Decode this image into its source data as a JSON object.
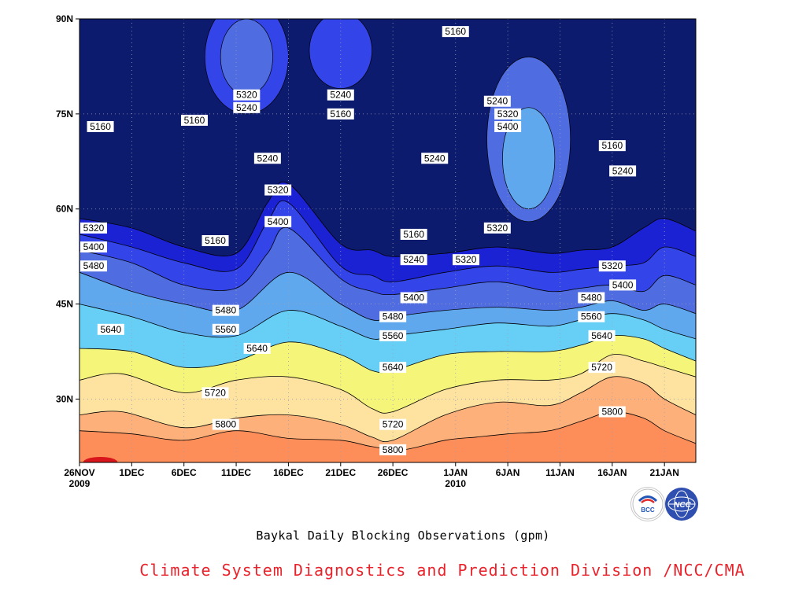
{
  "chart_data": {
    "type": "heatmap",
    "subtype": "filled-contour",
    "title": "Baykal Daily Blocking Observations (gpm)",
    "credit": "Climate System Diagnostics and Prediction Division /NCC/CMA",
    "x_axis": {
      "labels": [
        {
          "day": 0,
          "text": "26NOV",
          "sub": "2009"
        },
        {
          "day": 5,
          "text": "1DEC"
        },
        {
          "day": 10,
          "text": "6DEC"
        },
        {
          "day": 15,
          "text": "11DEC"
        },
        {
          "day": 20,
          "text": "16DEC"
        },
        {
          "day": 25,
          "text": "21DEC"
        },
        {
          "day": 30,
          "text": "26DEC"
        },
        {
          "day": 36,
          "text": "1JAN",
          "sub": "2010"
        },
        {
          "day": 41,
          "text": "6JAN"
        },
        {
          "day": 46,
          "text": "11JAN"
        },
        {
          "day": 51,
          "text": "16JAN"
        },
        {
          "day": 56,
          "text": "21JAN"
        }
      ],
      "range_days": [
        0,
        59
      ]
    },
    "y_axis": {
      "labels": [
        {
          "lat": 30,
          "text": "30N"
        },
        {
          "lat": 45,
          "text": "45N"
        },
        {
          "lat": 60,
          "text": "60N"
        },
        {
          "lat": 75,
          "text": "75N"
        },
        {
          "lat": 90,
          "text": "90N"
        }
      ],
      "range_lat": [
        20,
        90
      ]
    },
    "grid": "dotted",
    "levels": [
      5160,
      5240,
      5320,
      5400,
      5480,
      5560,
      5640,
      5720,
      5800
    ],
    "colors": [
      "#0d1b6e",
      "#1b22d4",
      "#3344e8",
      "#4f6ce0",
      "#5fa8ee",
      "#67cff6",
      "#f5f57a",
      "#fde2a0",
      "#feb07a",
      "#fd8e5a",
      "#f46e74",
      "#d8161b"
    ],
    "contour_lines": [
      {
        "level": 5800,
        "points": [
          [
            0,
            25.0
          ],
          [
            5,
            24.5
          ],
          [
            10,
            23.5
          ],
          [
            15,
            25.0
          ],
          [
            20,
            23.8
          ],
          [
            25,
            23.5
          ],
          [
            28,
            22.5
          ],
          [
            31,
            22.0
          ],
          [
            35,
            23.5
          ],
          [
            38,
            24.0
          ],
          [
            41,
            24.5
          ],
          [
            45,
            25.0
          ],
          [
            48,
            26.5
          ],
          [
            51,
            28.0
          ],
          [
            54,
            27.0
          ],
          [
            56,
            25.0
          ],
          [
            59,
            23.0
          ]
        ]
      },
      {
        "level": 5720,
        "points": [
          [
            0,
            27.5
          ],
          [
            4,
            28.0
          ],
          [
            10,
            25.5
          ],
          [
            15,
            27.0
          ],
          [
            20,
            27.5
          ],
          [
            25,
            26.0
          ],
          [
            28,
            24.0
          ],
          [
            30,
            23.5
          ],
          [
            35,
            27.5
          ],
          [
            40,
            29.5
          ],
          [
            45,
            29.0
          ],
          [
            48,
            31.0
          ],
          [
            51,
            33.5
          ],
          [
            54,
            32.5
          ],
          [
            56,
            30.0
          ],
          [
            59,
            27.5
          ]
        ]
      },
      {
        "level": 5640,
        "points": [
          [
            0,
            33.0
          ],
          [
            4,
            34.0
          ],
          [
            10,
            31.0
          ],
          [
            15,
            33.0
          ],
          [
            20,
            33.5
          ],
          [
            25,
            31.5
          ],
          [
            28,
            28.5
          ],
          [
            30,
            28.0
          ],
          [
            35,
            31.5
          ],
          [
            40,
            33.0
          ],
          [
            45,
            33.0
          ],
          [
            48,
            34.0
          ],
          [
            51,
            37.0
          ],
          [
            54,
            36.0
          ],
          [
            56,
            35.0
          ],
          [
            59,
            33.5
          ]
        ]
      },
      {
        "level": 5560,
        "points": [
          [
            0,
            38.0
          ],
          [
            5,
            37.5
          ],
          [
            10,
            35.0
          ],
          [
            15,
            36.0
          ],
          [
            20,
            39.0
          ],
          [
            25,
            37.0
          ],
          [
            28,
            34.5
          ],
          [
            30,
            34.5
          ],
          [
            35,
            37.0
          ],
          [
            40,
            37.5
          ],
          [
            45,
            37.5
          ],
          [
            48,
            38.5
          ],
          [
            51,
            40.0
          ],
          [
            54,
            39.5
          ],
          [
            56,
            38.0
          ],
          [
            59,
            36.0
          ]
        ]
      },
      {
        "level": 5480,
        "points": [
          [
            0,
            45.0
          ],
          [
            5,
            43.0
          ],
          [
            10,
            40.5
          ],
          [
            15,
            40.0
          ],
          [
            20,
            44.0
          ],
          [
            25,
            41.5
          ],
          [
            28,
            39.5
          ],
          [
            30,
            40.0
          ],
          [
            35,
            41.0
          ],
          [
            40,
            42.0
          ],
          [
            45,
            41.5
          ],
          [
            48,
            42.5
          ],
          [
            51,
            43.5
          ],
          [
            54,
            42.5
          ],
          [
            56,
            41.0
          ],
          [
            59,
            39.5
          ]
        ]
      },
      {
        "level": 5400,
        "points": [
          [
            0,
            50.0
          ],
          [
            5,
            47.0
          ],
          [
            10,
            45.0
          ],
          [
            15,
            44.0
          ],
          [
            20,
            50.0
          ],
          [
            25,
            45.0
          ],
          [
            28,
            42.5
          ],
          [
            30,
            43.0
          ],
          [
            35,
            44.0
          ],
          [
            40,
            44.5
          ],
          [
            45,
            44.0
          ],
          [
            48,
            44.5
          ],
          [
            51,
            45.5
          ],
          [
            54,
            44.0
          ],
          [
            56,
            45.0
          ],
          [
            59,
            43.5
          ]
        ]
      },
      {
        "level": 5320,
        "points": [
          [
            0,
            53.5
          ],
          [
            5,
            51.5
          ],
          [
            10,
            48.0
          ],
          [
            15,
            47.5
          ],
          [
            18,
            53.0
          ],
          [
            20,
            57.0
          ],
          [
            25,
            49.0
          ],
          [
            28,
            47.0
          ],
          [
            30,
            46.5
          ],
          [
            35,
            47.5
          ],
          [
            40,
            48.5
          ],
          [
            45,
            47.0
          ],
          [
            48,
            47.5
          ],
          [
            51,
            48.0
          ],
          [
            54,
            47.0
          ],
          [
            56,
            49.5
          ],
          [
            59,
            48.0
          ]
        ]
      },
      {
        "level": 5240,
        "points": [
          [
            0,
            56.0
          ],
          [
            5,
            54.0
          ],
          [
            10,
            51.5
          ],
          [
            15,
            50.5
          ],
          [
            18,
            58.0
          ],
          [
            20,
            61.0
          ],
          [
            25,
            51.0
          ],
          [
            28,
            49.5
          ],
          [
            30,
            48.5
          ],
          [
            35,
            50.0
          ],
          [
            40,
            51.0
          ],
          [
            45,
            50.0
          ],
          [
            48,
            50.5
          ],
          [
            51,
            51.0
          ],
          [
            54,
            51.5
          ],
          [
            56,
            54.0
          ],
          [
            59,
            52.5
          ]
        ]
      },
      {
        "level": 5160,
        "points": [
          [
            0,
            58.5
          ],
          [
            5,
            57.0
          ],
          [
            10,
            54.0
          ],
          [
            15,
            53.0
          ],
          [
            18,
            61.0
          ],
          [
            20,
            64.0
          ],
          [
            25,
            54.5
          ],
          [
            28,
            53.5
          ],
          [
            30,
            52.5
          ],
          [
            35,
            53.0
          ],
          [
            40,
            54.0
          ],
          [
            45,
            53.0
          ],
          [
            48,
            53.5
          ],
          [
            51,
            54.0
          ],
          [
            54,
            57.0
          ],
          [
            56,
            58.5
          ],
          [
            59,
            56.5
          ]
        ]
      }
    ],
    "blobs": [
      {
        "level": 5320,
        "center": [
          43,
          71
        ],
        "radius": [
          4,
          13
        ]
      },
      {
        "level": 5400,
        "center": [
          43,
          68
        ],
        "radius": [
          2.5,
          8
        ]
      },
      {
        "level": 5240,
        "center": [
          16,
          84
        ],
        "radius": [
          4,
          9
        ]
      },
      {
        "level": 5320,
        "center": [
          16,
          84
        ],
        "radius": [
          2.5,
          6
        ]
      },
      {
        "level": 5240,
        "center": [
          25,
          85
        ],
        "radius": [
          3,
          6
        ]
      }
    ],
    "contour_labels": [
      {
        "text": "5160",
        "day": 2,
        "lat": 73
      },
      {
        "text": "5160",
        "day": 11,
        "lat": 74
      },
      {
        "text": "5320",
        "day": 16,
        "lat": 78
      },
      {
        "text": "5240",
        "day": 16,
        "lat": 76
      },
      {
        "text": "5240",
        "day": 25,
        "lat": 78
      },
      {
        "text": "5160",
        "day": 25,
        "lat": 75
      },
      {
        "text": "5240",
        "day": 18,
        "lat": 68
      },
      {
        "text": "5320",
        "day": 19,
        "lat": 63
      },
      {
        "text": "5400",
        "day": 19,
        "lat": 58
      },
      {
        "text": "5160",
        "day": 13,
        "lat": 55
      },
      {
        "text": "5320",
        "day": 0,
        "lat": 57
      },
      {
        "text": "5400",
        "day": 0,
        "lat": 54
      },
      {
        "text": "5480",
        "day": 0,
        "lat": 51
      },
      {
        "text": "5480",
        "day": 14,
        "lat": 44
      },
      {
        "text": "5560",
        "day": 14,
        "lat": 41
      },
      {
        "text": "5640",
        "day": 3,
        "lat": 41
      },
      {
        "text": "5640",
        "day": 17,
        "lat": 38
      },
      {
        "text": "5720",
        "day": 13,
        "lat": 31
      },
      {
        "text": "5800",
        "day": 14,
        "lat": 26
      },
      {
        "text": "5160",
        "day": 32,
        "lat": 56
      },
      {
        "text": "5240",
        "day": 32,
        "lat": 52
      },
      {
        "text": "5400",
        "day": 32,
        "lat": 46
      },
      {
        "text": "5480",
        "day": 30,
        "lat": 43
      },
      {
        "text": "5560",
        "day": 30,
        "lat": 40
      },
      {
        "text": "5640",
        "day": 30,
        "lat": 35
      },
      {
        "text": "5720",
        "day": 30,
        "lat": 26
      },
      {
        "text": "5800",
        "day": 30,
        "lat": 22
      },
      {
        "text": "5240",
        "day": 34,
        "lat": 68
      },
      {
        "text": "5160",
        "day": 36,
        "lat": 88
      },
      {
        "text": "5320",
        "day": 37,
        "lat": 52
      },
      {
        "text": "5240",
        "day": 40,
        "lat": 77
      },
      {
        "text": "5320",
        "day": 41,
        "lat": 75
      },
      {
        "text": "5400",
        "day": 41,
        "lat": 73
      },
      {
        "text": "5320",
        "day": 40,
        "lat": 57
      },
      {
        "text": "5160",
        "day": 51,
        "lat": 70
      },
      {
        "text": "5240",
        "day": 52,
        "lat": 66
      },
      {
        "text": "5320",
        "day": 51,
        "lat": 51
      },
      {
        "text": "5400",
        "day": 52,
        "lat": 48
      },
      {
        "text": "5480",
        "day": 49,
        "lat": 46
      },
      {
        "text": "5560",
        "day": 49,
        "lat": 43
      },
      {
        "text": "5640",
        "day": 50,
        "lat": 40
      },
      {
        "text": "5720",
        "day": 50,
        "lat": 35
      },
      {
        "text": "5800",
        "day": 51,
        "lat": 28
      }
    ]
  },
  "logos": {
    "bcc": {
      "text": "BCC",
      "colors": [
        "#2357b7",
        "#e02a2a"
      ]
    },
    "ncc": {
      "text": "NCC",
      "color": "#2f4fb0"
    }
  }
}
